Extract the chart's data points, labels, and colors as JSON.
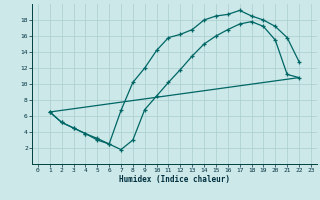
{
  "xlabel": "Humidex (Indice chaleur)",
  "bg_color": "#cce8e8",
  "line_color": "#006666",
  "grid_color": "#aacece",
  "xlim": [
    -0.5,
    23.5
  ],
  "ylim": [
    0,
    20
  ],
  "xticks": [
    0,
    1,
    2,
    3,
    4,
    5,
    6,
    7,
    8,
    9,
    10,
    11,
    12,
    13,
    14,
    15,
    16,
    17,
    18,
    19,
    20,
    21,
    22,
    23
  ],
  "yticks": [
    2,
    4,
    6,
    8,
    10,
    12,
    14,
    16,
    18
  ],
  "line1_x": [
    1,
    2,
    3,
    4,
    5,
    6,
    7,
    8,
    9,
    10,
    11,
    12,
    13,
    14,
    15,
    16,
    17,
    18,
    19,
    20,
    21,
    22
  ],
  "line1_y": [
    6.5,
    5.2,
    4.5,
    3.8,
    3.0,
    2.5,
    6.7,
    10.2,
    12.0,
    14.2,
    15.8,
    16.2,
    16.8,
    18.0,
    18.5,
    18.7,
    19.2,
    18.5,
    18.0,
    17.2,
    15.8,
    12.8
  ],
  "line2_x": [
    1,
    2,
    3,
    4,
    5,
    6,
    7,
    8,
    9,
    10,
    11,
    12,
    13,
    14,
    15,
    16,
    17,
    18,
    19,
    20,
    21,
    22
  ],
  "line2_y": [
    6.5,
    5.2,
    4.5,
    3.8,
    3.2,
    2.5,
    1.8,
    3.0,
    6.8,
    8.5,
    10.2,
    11.8,
    13.5,
    15.0,
    16.0,
    16.8,
    17.5,
    17.8,
    17.2,
    15.5,
    11.2,
    10.8
  ],
  "line3_x": [
    1,
    22
  ],
  "line3_y": [
    6.5,
    10.8
  ]
}
